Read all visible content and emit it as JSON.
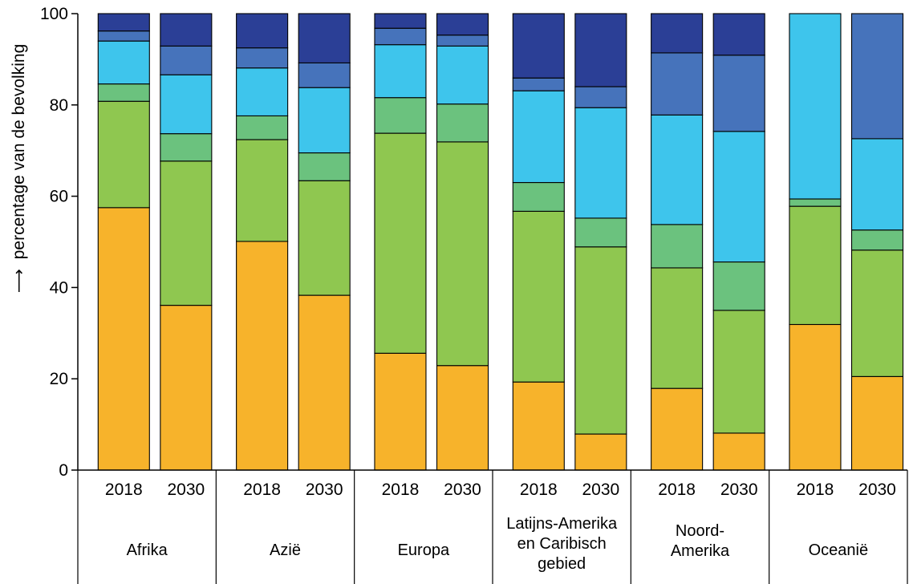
{
  "chart_data": {
    "type": "bar",
    "stacked": true,
    "title": "",
    "ylabel": "percentage van de bevolking",
    "ylabel_arrow": "⟶",
    "ylim": [
      0,
      100
    ],
    "yticks": [
      "0",
      "20",
      "40",
      "60",
      "80",
      "100"
    ],
    "grid": false,
    "legend": "none",
    "groups": [
      {
        "label_lines": [
          "Afrika"
        ],
        "years": [
          "2018",
          "2030"
        ]
      },
      {
        "label_lines": [
          "Azië"
        ],
        "years": [
          "2018",
          "2030"
        ]
      },
      {
        "label_lines": [
          "Europa"
        ],
        "years": [
          "2018",
          "2030"
        ]
      },
      {
        "label_lines": [
          "Latijns-Amerika",
          "en Caribisch",
          "gebied"
        ],
        "years": [
          "2018",
          "2030"
        ]
      },
      {
        "label_lines": [
          "Noord-",
          "Amerika"
        ],
        "years": [
          "2018",
          "2030"
        ]
      },
      {
        "label_lines": [
          "Oceanië"
        ],
        "years": [
          "2018",
          "2030"
        ]
      }
    ],
    "segment_colors": [
      "#F7B32B",
      "#8FC750",
      "#6BC27E",
      "#3EC5EC",
      "#4673BB",
      "#2B3F96"
    ],
    "bars": [
      {
        "group": "Afrika",
        "year": "2018",
        "values": [
          57.5,
          23.3,
          3.8,
          9.4,
          2.2,
          3.8
        ]
      },
      {
        "group": "Afrika",
        "year": "2030",
        "values": [
          36.1,
          31.6,
          6.0,
          12.9,
          6.3,
          7.1
        ]
      },
      {
        "group": "Azië",
        "year": "2018",
        "values": [
          50.1,
          22.3,
          5.2,
          10.5,
          4.4,
          7.5
        ]
      },
      {
        "group": "Azië",
        "year": "2030",
        "values": [
          38.3,
          25.1,
          6.1,
          14.3,
          5.4,
          10.8
        ]
      },
      {
        "group": "Europa",
        "year": "2018",
        "values": [
          25.6,
          48.2,
          7.8,
          11.6,
          3.6,
          3.2
        ]
      },
      {
        "group": "Europa",
        "year": "2030",
        "values": [
          22.9,
          49.0,
          8.3,
          12.7,
          2.4,
          4.7
        ]
      },
      {
        "group": "Latijns-Amerika en Caribisch gebied",
        "year": "2018",
        "values": [
          19.3,
          37.4,
          6.3,
          20.1,
          2.8,
          14.1
        ]
      },
      {
        "group": "Latijns-Amerika en Caribisch gebied",
        "year": "2030",
        "values": [
          7.9,
          41.0,
          6.3,
          24.2,
          4.6,
          16.0
        ]
      },
      {
        "group": "Noord-Amerika",
        "year": "2018",
        "values": [
          17.9,
          26.4,
          9.5,
          24.0,
          13.6,
          8.6
        ]
      },
      {
        "group": "Noord-Amerika",
        "year": "2030",
        "values": [
          8.1,
          26.9,
          10.6,
          28.6,
          16.7,
          9.1
        ]
      },
      {
        "group": "Oceanië",
        "year": "2018",
        "values": [
          31.9,
          25.9,
          1.6,
          40.6,
          0,
          0
        ]
      },
      {
        "group": "Oceanië",
        "year": "2030",
        "values": [
          20.5,
          27.7,
          4.4,
          20.0,
          27.4,
          0
        ]
      }
    ]
  }
}
